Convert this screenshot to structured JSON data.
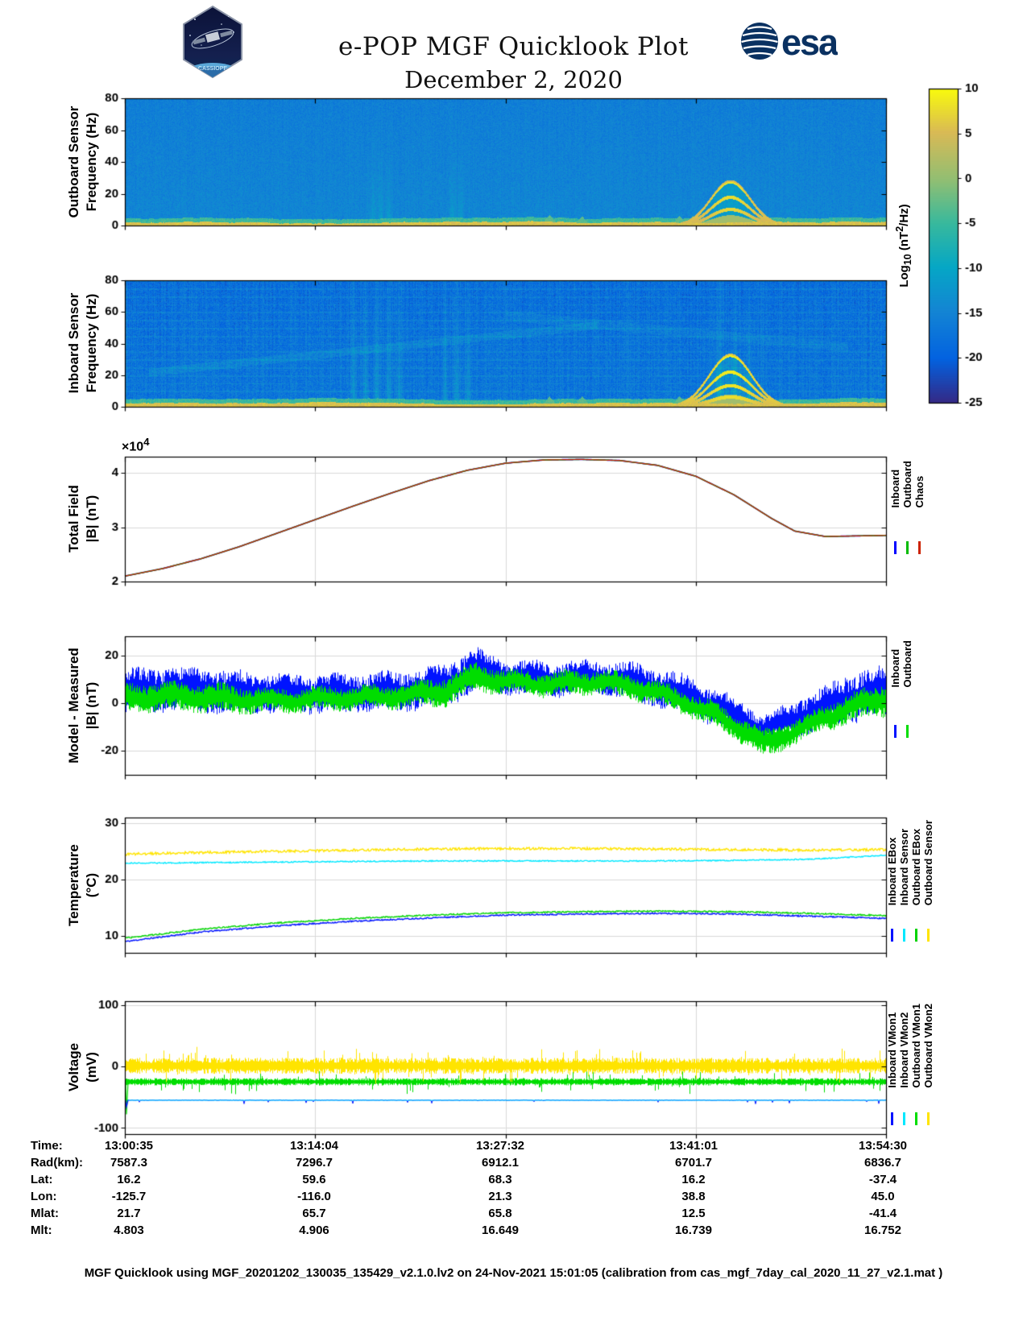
{
  "header": {
    "title": "e-POP MGF Quicklook Plot",
    "subtitle": "December 2, 2020",
    "esa_logo_text": "esa",
    "cassiope_logo_text": "CASSIOPE"
  },
  "colorbar": {
    "label_parts": [
      "Log",
      "10",
      " (nT",
      "2",
      "/Hz)"
    ],
    "ticks": [
      10,
      5,
      0,
      -5,
      -10,
      -15,
      -20,
      -25
    ],
    "clim": [
      -25,
      10
    ]
  },
  "ephemeris": {
    "rows": [
      {
        "label": "Time:",
        "values": [
          "13:00:35",
          "13:14:04",
          "13:27:32",
          "13:41:01",
          "13:54:30"
        ]
      },
      {
        "label": "Rad(km):",
        "values": [
          "7587.3",
          "7296.7",
          "6912.1",
          "6701.7",
          "6836.7"
        ]
      },
      {
        "label": "Lat:",
        "values": [
          "16.2",
          "59.6",
          "68.3",
          "16.2",
          "-37.4"
        ]
      },
      {
        "label": "Lon:",
        "values": [
          "-125.7",
          "-116.0",
          "21.3",
          "38.8",
          "45.0"
        ]
      },
      {
        "label": "Mlat:",
        "values": [
          "21.7",
          "65.7",
          "65.8",
          "12.5",
          "-41.4"
        ]
      },
      {
        "label": "Mlt:",
        "values": [
          "4.803",
          "4.906",
          "16.649",
          "16.739",
          "16.752"
        ]
      }
    ]
  },
  "footer": "MGF Quicklook using MGF_20201202_130035_135429_v2.1.0.lv2 on 24-Nov-2021 15:01:05 (calibration from cas_mgf_7day_cal_2020_11_27_v2.1.mat )",
  "chart_data": [
    {
      "type": "heatmap",
      "name": "outboard-sensor-spectrogram",
      "ylabel": [
        "Outboard Sensor",
        "Frequency (Hz)"
      ],
      "ylim": [
        0,
        80
      ],
      "yticks": [
        0,
        20,
        40,
        60,
        80
      ],
      "yticklabels": [
        "0",
        "20",
        "40",
        "60",
        "80"
      ],
      "clim": [
        -25,
        10
      ],
      "x_range": [
        "13:00:35",
        "13:54:30"
      ],
      "background_level": -14.6,
      "noise_sd": 1.7,
      "column_stripe": 0.5,
      "bottom_band_level": 5.5,
      "bottom_band_top_hz": 2.4,
      "transition_level": -5,
      "burst_columns": [
        0.325,
        0.335,
        0.345,
        0.43,
        0.44
      ],
      "burst_strength": 4,
      "burst_freq_scale": 22,
      "plumes": [
        0.557,
        0.6,
        0.728,
        0.746
      ],
      "event": {
        "x_center": 0.795,
        "x_sigma": 0.037,
        "peak_hz": 28,
        "arc_levels": [
          1.0,
          0.65,
          0.38
        ],
        "brightness": 4
      }
    },
    {
      "type": "heatmap",
      "name": "inboard-sensor-spectrogram",
      "ylabel": [
        "Inboard Sensor",
        "Frequency (Hz)"
      ],
      "ylim": [
        0,
        80
      ],
      "yticks": [
        0,
        20,
        40,
        60,
        80
      ],
      "yticklabels": [
        "0",
        "20",
        "40",
        "60",
        "80"
      ],
      "clim": [
        -25,
        10
      ],
      "x_range": [
        "13:00:35",
        "13:54:30"
      ],
      "background_level": -17,
      "noise_sd": 2.6,
      "column_stripe": 1.3,
      "harmonic_lines_spacing_hz": 5,
      "harmonic_brightness": 1.9,
      "wisps": [
        {
          "x0": 0.03,
          "x1": 0.62,
          "f0": 22,
          "f1": 52,
          "width_hz": 2.5,
          "brightness": 2.2
        },
        {
          "x0": 0.5,
          "x1": 0.95,
          "f0": 58,
          "f1": 38,
          "width_hz": 3,
          "brightness": 1.6
        }
      ],
      "bottom_band_level": 5.5,
      "bottom_band_top_hz": 2.6,
      "transition_level": -5,
      "burst_columns": [
        0.3,
        0.315,
        0.33,
        0.345,
        0.36,
        0.42,
        0.435,
        0.45,
        0.78,
        0.8,
        0.82
      ],
      "burst_strength": 5,
      "burst_freq_scale": 45,
      "plumes": [
        0.557,
        0.6,
        0.728,
        0.746
      ],
      "event": {
        "x_center": 0.795,
        "x_sigma": 0.04,
        "peak_hz": 33,
        "arc_levels": [
          1.0,
          0.68,
          0.42,
          0.2
        ],
        "brightness": 5
      }
    },
    {
      "type": "line",
      "subtype": "overlaid",
      "name": "total-field",
      "ylabel": [
        "Total Field",
        "|B| (nT)"
      ],
      "ylim": [
        20000,
        43000
      ],
      "yticks": [
        20000,
        30000,
        40000
      ],
      "yticklabels": [
        "2",
        "3",
        "4"
      ],
      "multiplier_parts": [
        "×10",
        "4"
      ],
      "x": [
        0,
        0.05,
        0.1,
        0.15,
        0.2,
        0.25,
        0.3,
        0.35,
        0.4,
        0.45,
        0.5,
        0.55,
        0.6,
        0.65,
        0.7,
        0.75,
        0.8,
        0.85,
        0.88,
        0.92,
        1
      ],
      "y": [
        21000,
        22400,
        24200,
        26400,
        28900,
        31400,
        33900,
        36300,
        38600,
        40500,
        41800,
        42400,
        42500,
        42300,
        41400,
        39400,
        36000,
        31600,
        29300,
        28300,
        28500
      ],
      "series": [
        {
          "name": "Inboard",
          "color": "#0000ff"
        },
        {
          "name": "Outboard",
          "color": "#00bb00"
        },
        {
          "name": "Chaos",
          "color": "#cc2200"
        }
      ]
    },
    {
      "type": "line",
      "subtype": "noisy-band",
      "name": "model-minus-measured",
      "ylabel": [
        "Model - Measured",
        "|B| (nT)"
      ],
      "ylim": [
        -30,
        28
      ],
      "yticks": [
        -20,
        0,
        20
      ],
      "yticklabels": [
        "-20",
        "0",
        "20"
      ],
      "series": [
        {
          "name": "Inboard",
          "color": "#0013ff",
          "x": [
            0,
            0.06,
            0.12,
            0.2,
            0.28,
            0.36,
            0.42,
            0.46,
            0.5,
            0.56,
            0.62,
            0.68,
            0.74,
            0.8,
            0.84,
            0.9,
            0.95,
            1
          ],
          "center": [
            5,
            6,
            5,
            4,
            4,
            5,
            7,
            14,
            11,
            10,
            11,
            8,
            3,
            -5,
            -11,
            -4,
            2,
            5
          ],
          "amp": [
            9,
            9,
            9,
            8,
            8,
            8,
            9,
            9,
            7,
            7,
            7,
            8,
            8,
            7,
            6,
            8,
            10,
            11
          ]
        },
        {
          "name": "Outboard",
          "color": "#00dd00",
          "x": [
            0,
            0.06,
            0.12,
            0.2,
            0.28,
            0.36,
            0.42,
            0.46,
            0.5,
            0.56,
            0.62,
            0.68,
            0.74,
            0.8,
            0.84,
            0.9,
            0.95,
            1
          ],
          "center": [
            2,
            3,
            2,
            1,
            2,
            3,
            5,
            11,
            9,
            8,
            9,
            6,
            0,
            -9,
            -17,
            -9,
            -2,
            2
          ],
          "amp": [
            6,
            6,
            6,
            5,
            5,
            5,
            6,
            6,
            5,
            5,
            5,
            5,
            5,
            5,
            6,
            5,
            6,
            7
          ]
        }
      ]
    },
    {
      "type": "line",
      "subtype": "multi-line",
      "name": "temperature",
      "ylabel": [
        "Temperature",
        "(°C)"
      ],
      "ylim": [
        7,
        31
      ],
      "yticks": [
        10,
        20,
        30
      ],
      "yticklabels": [
        "10",
        "20",
        "30"
      ],
      "x": [
        0,
        0.1,
        0.2,
        0.3,
        0.4,
        0.5,
        0.6,
        0.7,
        0.8,
        0.9,
        1
      ],
      "series": [
        {
          "name": "Inboard EBox",
          "color": "#0013ff",
          "jitter": 0.12,
          "y": [
            9.0,
            10.7,
            11.8,
            12.6,
            13.2,
            13.7,
            13.9,
            14.0,
            13.9,
            13.5,
            13.1
          ]
        },
        {
          "name": "Inboard Sensor",
          "color": "#00e8ff",
          "jitter": 0.1,
          "y": [
            22.9,
            23.0,
            23.1,
            23.2,
            23.3,
            23.3,
            23.3,
            23.3,
            23.4,
            23.6,
            24.3
          ]
        },
        {
          "name": "Outboard EBox",
          "color": "#00d300",
          "jitter": 0.12,
          "y": [
            9.6,
            11.2,
            12.3,
            13.1,
            13.7,
            14.1,
            14.3,
            14.4,
            14.3,
            14.0,
            13.6
          ]
        },
        {
          "name": "Outboard Sensor",
          "color": "#ffe400",
          "jitter": 0.22,
          "y": [
            24.5,
            24.8,
            25.0,
            25.2,
            25.4,
            25.5,
            25.5,
            25.4,
            25.3,
            25.2,
            25.3
          ]
        }
      ]
    },
    {
      "type": "line",
      "subtype": "voltage",
      "name": "voltage",
      "ylabel": [
        "Voltage",
        "(mV)"
      ],
      "ylim": [
        -110,
        106
      ],
      "yticks": [
        -100,
        0,
        100
      ],
      "yticklabels": [
        "-100",
        "0",
        "100"
      ],
      "series": [
        {
          "name": "Inboard VMon1",
          "color": "#0013ff",
          "center": -55,
          "amp": 1.5,
          "spike_prob": 0.02,
          "spike_amp": 6,
          "style": "line"
        },
        {
          "name": "Inboard VMon2",
          "color": "#00e8ff",
          "center": -55,
          "amp": 0.2,
          "spike_prob": 0,
          "spike_amp": 0,
          "style": "line"
        },
        {
          "name": "Outboard VMon1",
          "color": "#00dd00",
          "center": -25,
          "amp": 6,
          "spike_prob": 0.08,
          "spike_amp": 16,
          "style": "band"
        },
        {
          "name": "Outboard VMon2",
          "color": "#ffe400",
          "center": 1,
          "amp": 13,
          "spike_prob": 0.1,
          "spike_amp": 18,
          "style": "band"
        }
      ],
      "start_transient": {
        "x_frac": 0.004,
        "low": -78
      }
    }
  ]
}
